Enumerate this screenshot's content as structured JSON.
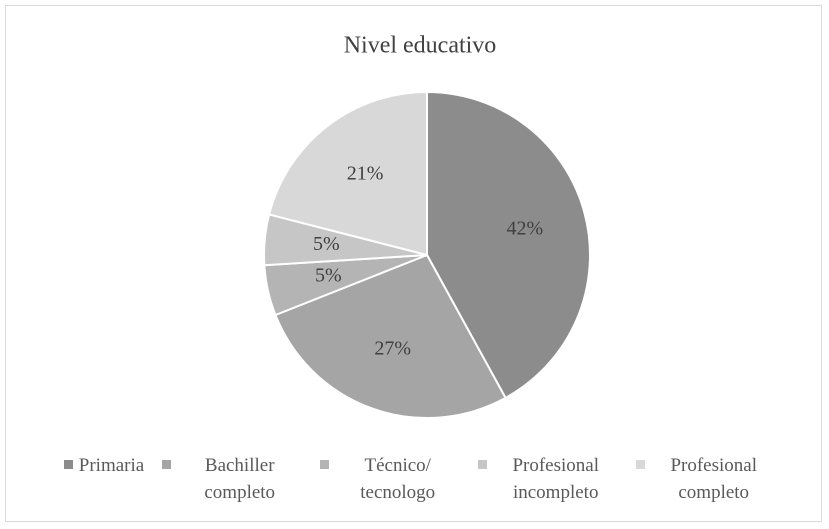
{
  "chart_data": {
    "type": "pie",
    "title": "Nivel educativo",
    "categories": [
      "Primaria",
      "Bachiller completo",
      "Técnico/ tecnologo",
      "Profesional incompleto",
      "Profesional completo"
    ],
    "values": [
      42,
      27,
      5,
      5,
      21
    ],
    "value_labels": [
      "42%",
      "27%",
      "5%",
      "5%",
      "21%"
    ],
    "colors": [
      "#8c8c8c",
      "#a5a5a5",
      "#b4b4b4",
      "#c6c6c6",
      "#d8d8d8"
    ],
    "legend": "bottom"
  }
}
